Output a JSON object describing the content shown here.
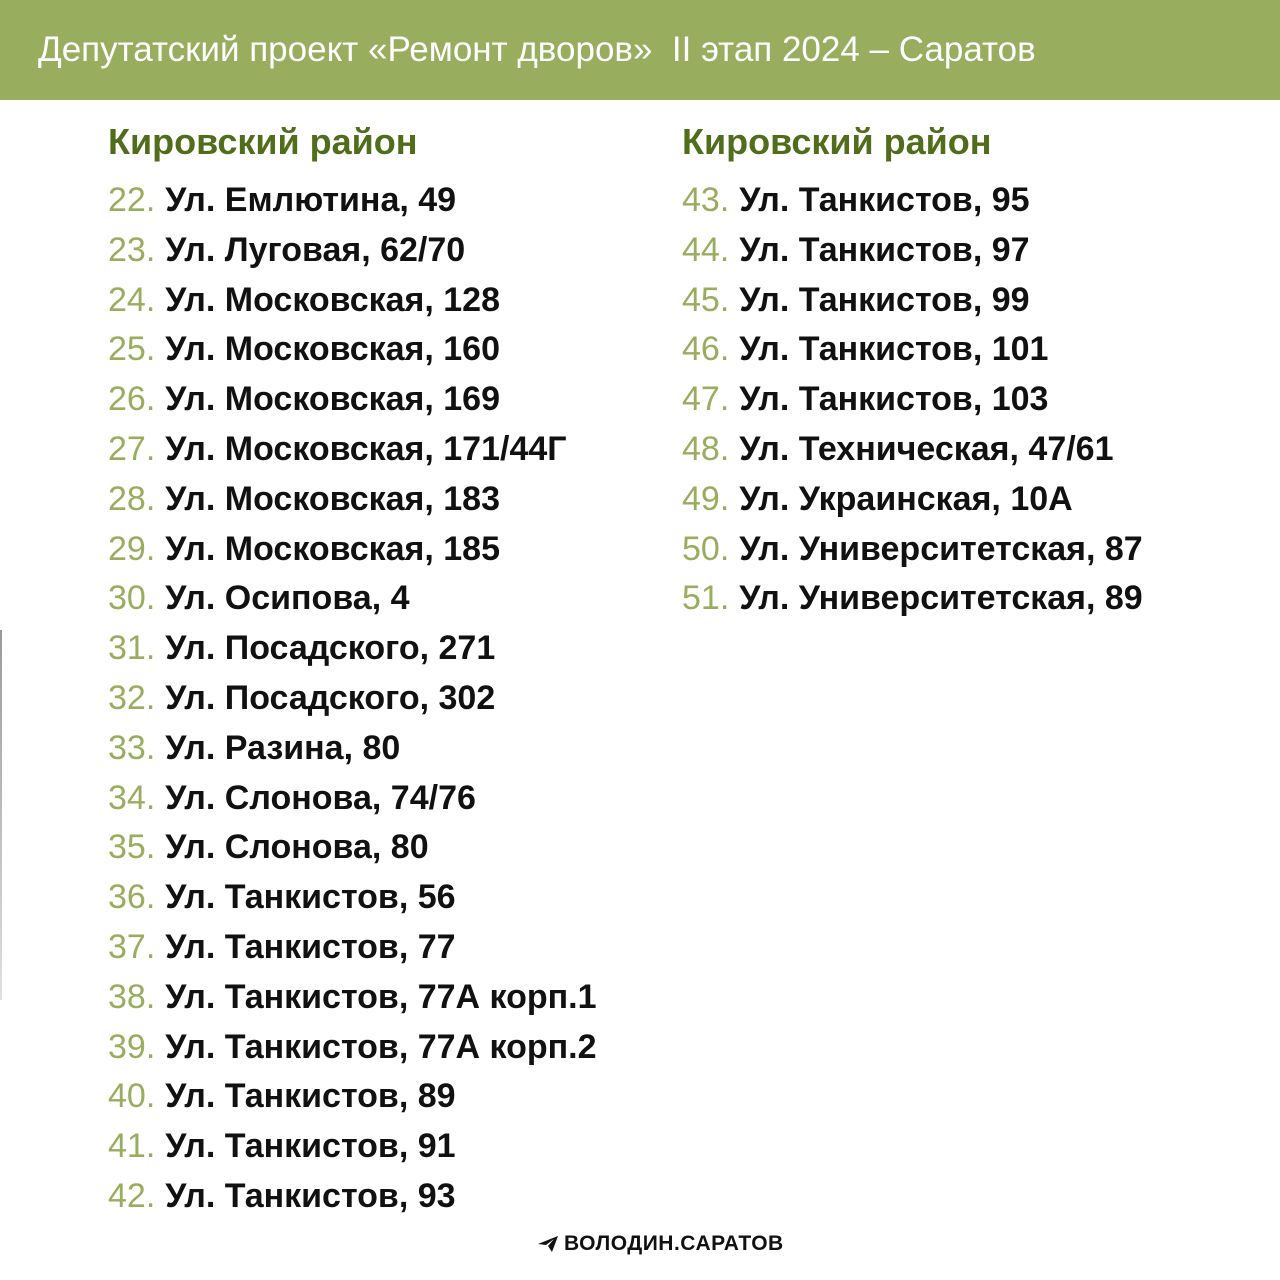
{
  "header": {
    "title": "Депутатский проект «Ремонт дворов»  II этап 2024 – Саратов",
    "background_color": "#98ad5e"
  },
  "columns": [
    {
      "district": "Кировский район",
      "items": [
        {
          "num": "22.",
          "address": "Ул. Емлютина, 49"
        },
        {
          "num": "23.",
          "address": "Ул. Луговая, 62/70"
        },
        {
          "num": "24.",
          "address": "Ул. Московская, 128"
        },
        {
          "num": "25.",
          "address": "Ул. Московская, 160"
        },
        {
          "num": "26.",
          "address": "Ул. Московская, 169"
        },
        {
          "num": "27.",
          "address": "Ул. Московская, 171/44Г"
        },
        {
          "num": "28.",
          "address": "Ул. Московская, 183"
        },
        {
          "num": "29.",
          "address": "Ул. Московская, 185"
        },
        {
          "num": "30.",
          "address": "Ул. Осипова, 4"
        },
        {
          "num": "31.",
          "address": "Ул. Посадского, 271"
        },
        {
          "num": "32.",
          "address": "Ул. Посадского, 302"
        },
        {
          "num": "33.",
          "address": "Ул. Разина, 80"
        },
        {
          "num": "34.",
          "address": "Ул. Слонова, 74/76"
        },
        {
          "num": "35.",
          "address": "Ул. Слонова, 80"
        },
        {
          "num": "36.",
          "address": "Ул. Танкистов, 56"
        },
        {
          "num": "37.",
          "address": "Ул. Танкистов, 77"
        },
        {
          "num": "38.",
          "address": "Ул. Танкистов, 77А корп.1"
        },
        {
          "num": "39.",
          "address": "Ул. Танкистов, 77А корп.2"
        },
        {
          "num": "40.",
          "address": "Ул. Танкистов, 89"
        },
        {
          "num": "41.",
          "address": "Ул. Танкистов, 91"
        },
        {
          "num": "42.",
          "address": "Ул. Танкистов, 93"
        }
      ]
    },
    {
      "district": "Кировский район",
      "items": [
        {
          "num": "43.",
          "address": "Ул. Танкистов, 95"
        },
        {
          "num": "44.",
          "address": "Ул. Танкистов, 97"
        },
        {
          "num": "45.",
          "address": "Ул. Танкистов, 99"
        },
        {
          "num": "46.",
          "address": "Ул. Танкистов, 101"
        },
        {
          "num": "47.",
          "address": "Ул. Танкистов, 103"
        },
        {
          "num": "48.",
          "address": "Ул. Техническая, 47/61"
        },
        {
          "num": "49.",
          "address": "Ул. Украинская, 10А"
        },
        {
          "num": "50.",
          "address": "Ул. Университетская, 87"
        },
        {
          "num": "51.",
          "address": "Ул. Университетская, 89"
        }
      ]
    }
  ],
  "footer": {
    "icon": "telegram-paper-plane-icon",
    "label": "ВОЛОДИН.САРАТОВ"
  },
  "colors": {
    "number": "#98ad5e",
    "district_heading": "#4f6d1a",
    "address_text": "#111111"
  }
}
